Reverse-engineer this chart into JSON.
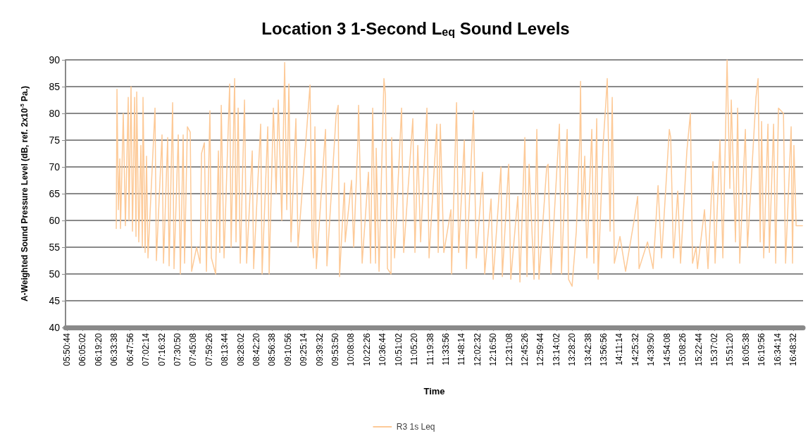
{
  "chart_data": {
    "type": "line",
    "title": "Location 3 1-Second L$_{eq}$ Sound Levels",
    "xlabel": "Time",
    "ylabel": "A-Weighted Sound Pressure Level (dB, ref. 2x10$^{-5}$ Pa.)",
    "ylim": [
      40,
      90
    ],
    "yticks": [
      40,
      45,
      50,
      55,
      60,
      65,
      70,
      75,
      80,
      85,
      90
    ],
    "xlim": [
      5.824,
      16.958
    ],
    "xticks": [
      {
        "value": 5.8456,
        "label": "05:50:44"
      },
      {
        "value": 6.0839,
        "label": "06:05:02"
      },
      {
        "value": 6.3222,
        "label": "06:19:20"
      },
      {
        "value": 6.5606,
        "label": "06:33:38"
      },
      {
        "value": 6.7989,
        "label": "06:47:56"
      },
      {
        "value": 7.0372,
        "label": "07:02:14"
      },
      {
        "value": 7.2756,
        "label": "07:16:32"
      },
      {
        "value": 7.5139,
        "label": "07:30:50"
      },
      {
        "value": 7.7522,
        "label": "07:45:08"
      },
      {
        "value": 7.9906,
        "label": "07:59:26"
      },
      {
        "value": 8.2289,
        "label": "08:13:44"
      },
      {
        "value": 8.4672,
        "label": "08:28:02"
      },
      {
        "value": 8.7056,
        "label": "08:42:20"
      },
      {
        "value": 8.9439,
        "label": "08:56:38"
      },
      {
        "value": 9.1822,
        "label": "09:10:56"
      },
      {
        "value": 9.4206,
        "label": "09:25:14"
      },
      {
        "value": 9.6589,
        "label": "09:39:32"
      },
      {
        "value": 9.8972,
        "label": "09:53:50"
      },
      {
        "value": 10.1356,
        "label": "10:08:08"
      },
      {
        "value": 10.3739,
        "label": "10:22:26"
      },
      {
        "value": 10.6122,
        "label": "10:36:44"
      },
      {
        "value": 10.8506,
        "label": "10:51:02"
      },
      {
        "value": 11.0889,
        "label": "11:05:20"
      },
      {
        "value": 11.3272,
        "label": "11:19:38"
      },
      {
        "value": 11.5656,
        "label": "11:33:56"
      },
      {
        "value": 11.8039,
        "label": "11:48:14"
      },
      {
        "value": 12.0422,
        "label": "12:02:32"
      },
      {
        "value": 12.2806,
        "label": "12:16:50"
      },
      {
        "value": 12.5189,
        "label": "12:31:08"
      },
      {
        "value": 12.7572,
        "label": "12:45:26"
      },
      {
        "value": 12.9956,
        "label": "12:59:44"
      },
      {
        "value": 13.2339,
        "label": "13:14:02"
      },
      {
        "value": 13.4722,
        "label": "13:28:20"
      },
      {
        "value": 13.7106,
        "label": "13:42:38"
      },
      {
        "value": 13.9489,
        "label": "13:56:56"
      },
      {
        "value": 14.1872,
        "label": "14:11:14"
      },
      {
        "value": 14.4256,
        "label": "14:25:32"
      },
      {
        "value": 14.6639,
        "label": "14:39:50"
      },
      {
        "value": 14.9022,
        "label": "14:54:08"
      },
      {
        "value": 15.1406,
        "label": "15:08:26"
      },
      {
        "value": 15.3789,
        "label": "15:22:44"
      },
      {
        "value": 15.6172,
        "label": "15:37:02"
      },
      {
        "value": 15.8556,
        "label": "15:51:20"
      },
      {
        "value": 16.0939,
        "label": "16:05:38"
      },
      {
        "value": 16.3322,
        "label": "16:19:56"
      },
      {
        "value": 16.5706,
        "label": "16:34:14"
      },
      {
        "value": 16.8089,
        "label": "16:48:32"
      }
    ],
    "grid": "y",
    "legend": "bottom",
    "marker": "none",
    "line_style": "solid",
    "series": [
      {
        "name": "R3 1s Leq",
        "color": "#fdca98",
        "x": [
          6.59,
          6.601,
          6.622,
          6.643,
          6.654,
          6.696,
          6.728,
          6.771,
          6.782,
          6.813,
          6.835,
          6.867,
          6.888,
          6.899,
          6.93,
          6.962,
          6.984,
          6.994,
          7.026,
          7.047,
          7.069,
          7.175,
          7.196,
          7.281,
          7.303,
          7.366,
          7.388,
          7.441,
          7.462,
          7.526,
          7.558,
          7.6,
          7.621,
          7.664,
          7.707,
          7.728,
          7.803,
          7.856,
          7.877,
          7.92,
          7.951,
          8.004,
          8.026,
          8.09,
          8.132,
          8.153,
          8.175,
          8.217,
          8.302,
          8.324,
          8.377,
          8.398,
          8.43,
          8.462,
          8.526,
          8.558,
          8.643,
          8.664,
          8.77,
          8.792,
          8.877,
          8.898,
          8.962,
          9.004,
          9.036,
          9.089,
          9.132,
          9.164,
          9.196,
          9.228,
          9.302,
          9.334,
          9.515,
          9.547,
          9.568,
          9.589,
          9.61,
          9.749,
          9.77,
          9.908,
          9.94,
          9.961,
          10.036,
          10.046,
          10.142,
          10.174,
          10.238,
          10.248,
          10.302,
          10.397,
          10.429,
          10.461,
          10.504,
          10.514,
          10.557,
          10.631,
          10.653,
          10.684,
          10.738,
          10.748,
          10.791,
          10.897,
          10.929,
          11.067,
          11.099,
          11.142,
          11.184,
          11.28,
          11.312,
          11.429,
          11.45,
          11.482,
          11.535,
          11.642,
          11.652,
          11.727,
          11.759,
          11.844,
          11.876,
          11.982,
          12.025,
          12.12,
          12.152,
          12.248,
          12.28,
          12.397,
          12.418,
          12.514,
          12.546,
          12.652,
          12.684,
          12.758,
          12.79,
          12.822,
          12.897,
          12.939,
          12.971,
          13.088,
          13.109,
          13.152,
          13.28,
          13.311,
          13.397,
          13.418,
          13.471,
          13.535,
          13.588,
          13.599,
          13.62,
          13.662,
          13.694,
          13.769,
          13.8,
          13.843,
          13.864,
          13.939,
          13.981,
          14.002,
          14.045,
          14.077,
          14.109,
          14.194,
          14.279,
          14.407,
          14.461,
          14.482,
          14.61,
          14.694,
          14.769,
          14.822,
          14.939,
          14.96,
          15.002,
          15.066,
          15.108,
          15.204,
          15.257,
          15.289,
          15.343,
          15.364,
          15.47,
          15.523,
          15.598,
          15.63,
          15.704,
          15.747,
          15.811,
          15.853,
          15.874,
          15.938,
          15.97,
          16.002,
          16.087,
          16.119,
          16.247,
          16.279,
          16.311,
          16.332,
          16.364,
          16.428,
          16.449,
          16.513,
          16.545,
          16.587,
          16.662,
          16.694,
          16.778,
          16.799,
          16.82,
          16.853,
          16.949
        ],
        "values": [
          58.5,
          84.5,
          62,
          71.5,
          58.5,
          80,
          59,
          83,
          60,
          85,
          58,
          83,
          57,
          84,
          56,
          74,
          55,
          83,
          54,
          72,
          53,
          81,
          52.5,
          76,
          52,
          75.5,
          51.5,
          82,
          51,
          76,
          50,
          76,
          52,
          77.5,
          76.5,
          50.5,
          55,
          52,
          72.5,
          74.5,
          50.5,
          80.5,
          53,
          50,
          73,
          54,
          81.5,
          53,
          85.5,
          55,
          86.5,
          56,
          81,
          52,
          82.5,
          52,
          73,
          51,
          78,
          50,
          77.5,
          50,
          81,
          65,
          82.5,
          60,
          89.5,
          62,
          85.5,
          56,
          79,
          55,
          85.3,
          56,
          53,
          77.5,
          51,
          77,
          51.5,
          79.5,
          81.5,
          49.5,
          67,
          56,
          67.5,
          55,
          75,
          81.5,
          52,
          69,
          52,
          81,
          52,
          73.5,
          50.5,
          86.5,
          83.5,
          51,
          50,
          75.5,
          53,
          81,
          54,
          79,
          54,
          74,
          56,
          81,
          53,
          78,
          54,
          78,
          54,
          62,
          50,
          82,
          54,
          75,
          51,
          80.5,
          53,
          69,
          50,
          64,
          49,
          70,
          49.5,
          70.5,
          49,
          64.5,
          48.5,
          75.5,
          49.5,
          70.5,
          49,
          77,
          49,
          70,
          70.5,
          50,
          78,
          50,
          77,
          49,
          47.7,
          58,
          75.5,
          86,
          60,
          72,
          53,
          77,
          52,
          79,
          49,
          74,
          82,
          86.5,
          58,
          83,
          52,
          57,
          50.5,
          60,
          64.5,
          51,
          56,
          51,
          66.5,
          53,
          77,
          75.5,
          53,
          65.5,
          52,
          73,
          80,
          52,
          55,
          51,
          62,
          51,
          71,
          52,
          75,
          53,
          90,
          66,
          82.5,
          56,
          81,
          52,
          77,
          55,
          83,
          86.5,
          56,
          78.5,
          53,
          78,
          54,
          78,
          52,
          81,
          80,
          52,
          77.5,
          52,
          74,
          59,
          59
        ]
      }
    ]
  }
}
